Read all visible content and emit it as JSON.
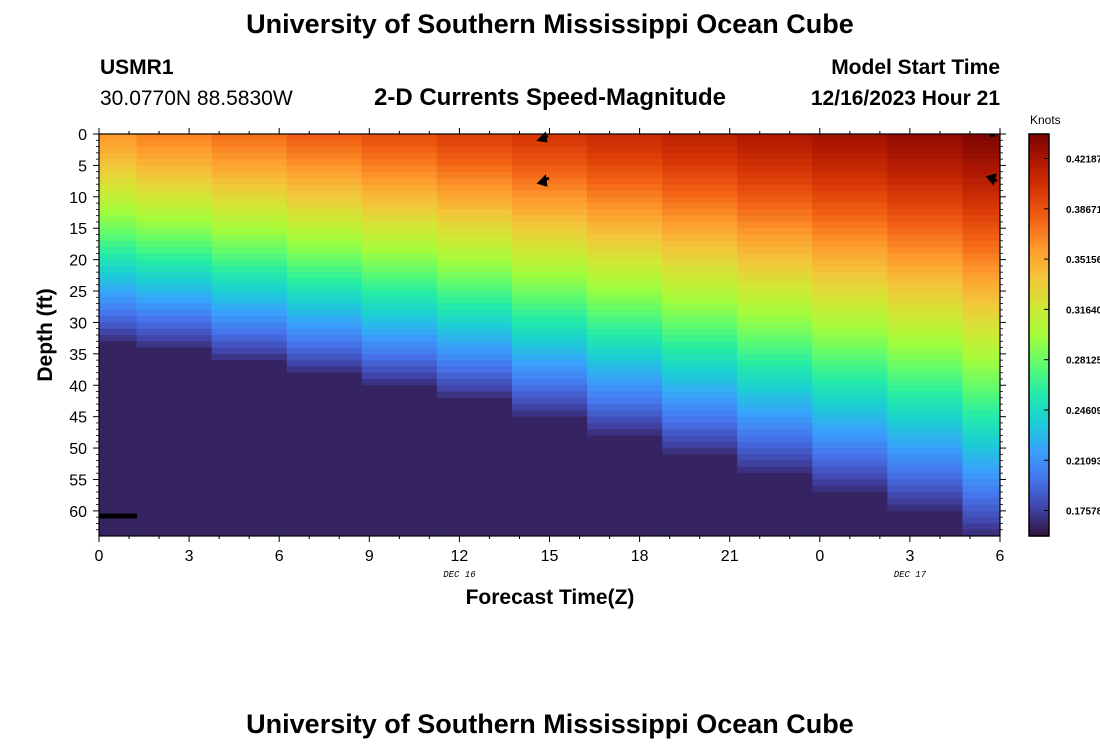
{
  "header": {
    "title": "University of Southern Mississippi Ocean Cube",
    "station_id": "USMR1",
    "coords": "30.0770N  88.5830W",
    "subtitle": "2-D Currents Speed-Magnitude",
    "model_label": "Model Start Time",
    "model_time": "12/16/2023 Hour 21"
  },
  "footer": {
    "title": "University of Southern Mississippi Ocean Cube"
  },
  "colors": {
    "colormap": [
      "#30123b",
      "#4145ab",
      "#4675ed",
      "#39a2fc",
      "#1bcfd4",
      "#24eca6",
      "#61fc6c",
      "#a4fc3b",
      "#d1e834",
      "#f3c63a",
      "#fe9b2d",
      "#f36315",
      "#d93806",
      "#b11901",
      "#7a0403"
    ]
  },
  "chart_data": {
    "type": "heatmap",
    "xlabel": "Forecast Time(Z)",
    "ylabel": "Depth (ft)",
    "x_tick_labels": [
      "0",
      "3",
      "6",
      "9",
      "12",
      "15",
      "18",
      "21",
      "0",
      "3",
      "6"
    ],
    "x_range_hours": [
      0,
      30
    ],
    "date_labels": [
      {
        "text": "DEC 16",
        "hour": 12
      },
      {
        "text": "DEC 17",
        "hour": 27
      }
    ],
    "y_tick_labels": [
      "0",
      "5",
      "10",
      "15",
      "20",
      "25",
      "30",
      "35",
      "40",
      "45",
      "50",
      "55",
      "60"
    ],
    "ylim": [
      0,
      64
    ],
    "colorbar": {
      "label": "Knots",
      "ticks": [
        "0.42187",
        "0.38671",
        "0.35156",
        "0.31640",
        "0.28125",
        "0.24609",
        "0.21093",
        "0.17578"
      ],
      "range": [
        0.158,
        0.439
      ]
    },
    "time_columns": [
      {
        "hour": 0,
        "surface": 0.358,
        "gradient_depth": 33
      },
      {
        "hour": 2.5,
        "surface": 0.366,
        "gradient_depth": 34
      },
      {
        "hour": 5,
        "surface": 0.373,
        "gradient_depth": 36
      },
      {
        "hour": 7.5,
        "surface": 0.38,
        "gradient_depth": 38
      },
      {
        "hour": 10,
        "surface": 0.387,
        "gradient_depth": 40
      },
      {
        "hour": 12.5,
        "surface": 0.394,
        "gradient_depth": 42
      },
      {
        "hour": 15,
        "surface": 0.4,
        "gradient_depth": 45
      },
      {
        "hour": 17.5,
        "surface": 0.406,
        "gradient_depth": 48
      },
      {
        "hour": 20,
        "surface": 0.412,
        "gradient_depth": 51
      },
      {
        "hour": 22.5,
        "surface": 0.418,
        "gradient_depth": 54
      },
      {
        "hour": 25,
        "surface": 0.424,
        "gradient_depth": 57
      },
      {
        "hour": 27.5,
        "surface": 0.43,
        "gradient_depth": 60
      },
      {
        "hour": 30,
        "surface": 0.436,
        "gradient_depth": 64
      }
    ],
    "bottom_value": 0.165
  }
}
